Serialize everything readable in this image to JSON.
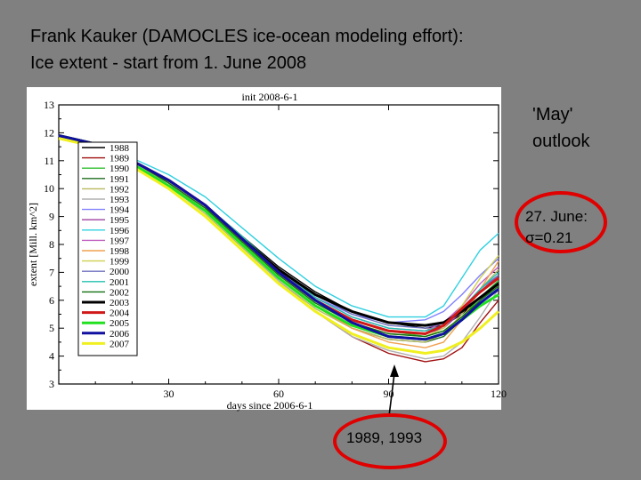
{
  "slide": {
    "title_line1": "Frank Kauker (DAMOCLES ice-ocean modeling effort):",
    "title_line2": "Ice extent - start from 1. June 2008"
  },
  "annotations": {
    "outlook_line1": "'May'",
    "outlook_line2": "outlook",
    "june_line1": "27. June:",
    "june_line2": "σ=0.21",
    "years": "1989, 1993",
    "highlight_color": "#e00000"
  },
  "chart_data": {
    "type": "line",
    "title": "init 2008-6-1",
    "xlabel": "days since 2006-6-1",
    "ylabel": "extent [Mill. km^2]",
    "xlim": [
      0,
      120
    ],
    "ylim": [
      3,
      13
    ],
    "xticks": [
      30,
      60,
      90,
      120
    ],
    "yticks": [
      3,
      4,
      5,
      6,
      7,
      8,
      9,
      10,
      11,
      12,
      13
    ],
    "legend_position": "left",
    "series": [
      {
        "name": "1988",
        "color": "#000000",
        "x": [
          0,
          10,
          20,
          30,
          40,
          50,
          60,
          70,
          80,
          90,
          100,
          105,
          110,
          115,
          120
        ],
        "y": [
          11.9,
          11.6,
          11.0,
          10.3,
          9.4,
          8.3,
          7.2,
          6.3,
          5.6,
          5.2,
          5.0,
          5.1,
          5.5,
          6.1,
          6.7
        ]
      },
      {
        "name": "1989",
        "color": "#a01010",
        "x": [
          0,
          10,
          20,
          30,
          40,
          50,
          60,
          70,
          80,
          90,
          100,
          105,
          110,
          115,
          120
        ],
        "y": [
          11.9,
          11.6,
          10.9,
          10.1,
          9.2,
          8.0,
          6.7,
          5.6,
          4.7,
          4.1,
          3.8,
          3.9,
          4.3,
          5.2,
          6.0
        ]
      },
      {
        "name": "1990",
        "color": "#30c030",
        "x": [
          0,
          10,
          20,
          30,
          40,
          50,
          60,
          70,
          80,
          90,
          100,
          105,
          110,
          115,
          120
        ],
        "y": [
          11.9,
          11.6,
          10.9,
          10.2,
          9.3,
          8.1,
          7.0,
          6.0,
          5.3,
          4.9,
          4.7,
          4.9,
          5.4,
          6.1,
          6.7
        ]
      },
      {
        "name": "1991",
        "color": "#1e6e1e",
        "x": [
          0,
          10,
          20,
          30,
          40,
          50,
          60,
          70,
          80,
          90,
          100,
          105,
          110,
          115,
          120
        ],
        "y": [
          11.9,
          11.6,
          11.0,
          10.2,
          9.2,
          8.0,
          6.8,
          5.8,
          5.0,
          4.6,
          4.5,
          4.7,
          5.3,
          6.0,
          6.6
        ]
      },
      {
        "name": "1992",
        "color": "#b8b860",
        "x": [
          0,
          10,
          20,
          30,
          40,
          50,
          60,
          70,
          80,
          90,
          100,
          105,
          110,
          115,
          120
        ],
        "y": [
          11.9,
          11.6,
          10.9,
          10.1,
          9.1,
          7.9,
          6.7,
          5.7,
          5.0,
          4.6,
          4.5,
          4.8,
          5.5,
          6.4,
          7.1
        ]
      },
      {
        "name": "1993",
        "color": "#b0b0b0",
        "x": [
          0,
          10,
          20,
          30,
          40,
          50,
          60,
          70,
          80,
          90,
          100,
          105,
          110,
          115,
          120
        ],
        "y": [
          11.9,
          11.6,
          10.9,
          10.2,
          9.2,
          8.0,
          6.7,
          5.6,
          4.7,
          4.2,
          3.9,
          4.0,
          4.5,
          5.4,
          6.4
        ]
      },
      {
        "name": "1994",
        "color": "#8080ff",
        "x": [
          0,
          10,
          20,
          30,
          40,
          50,
          60,
          70,
          80,
          90,
          100,
          105,
          110,
          115,
          120
        ],
        "y": [
          11.9,
          11.6,
          11.0,
          10.3,
          9.4,
          8.2,
          7.0,
          6.1,
          5.5,
          5.2,
          5.3,
          5.6,
          6.2,
          6.9,
          7.5
        ]
      },
      {
        "name": "1995",
        "color": "#a040a0",
        "x": [
          0,
          10,
          20,
          30,
          40,
          50,
          60,
          70,
          80,
          90,
          100,
          105,
          110,
          115,
          120
        ],
        "y": [
          11.9,
          11.6,
          11.0,
          10.2,
          9.3,
          8.1,
          6.9,
          6.0,
          5.3,
          4.9,
          4.8,
          5.0,
          5.6,
          6.3,
          6.9
        ]
      },
      {
        "name": "1996",
        "color": "#30d0e0",
        "x": [
          0,
          10,
          20,
          30,
          40,
          50,
          60,
          70,
          80,
          90,
          100,
          105,
          110,
          115,
          120
        ],
        "y": [
          11.9,
          11.6,
          11.1,
          10.5,
          9.7,
          8.6,
          7.5,
          6.5,
          5.8,
          5.4,
          5.4,
          5.8,
          6.8,
          7.8,
          8.4
        ]
      },
      {
        "name": "1997",
        "color": "#c060c0",
        "x": [
          0,
          10,
          20,
          30,
          40,
          50,
          60,
          70,
          80,
          90,
          100,
          105,
          110,
          115,
          120
        ],
        "y": [
          11.9,
          11.6,
          11.0,
          10.3,
          9.4,
          8.2,
          7.0,
          6.1,
          5.4,
          5.0,
          4.9,
          5.2,
          5.8,
          6.6,
          7.2
        ]
      },
      {
        "name": "1998",
        "color": "#f0a050",
        "x": [
          0,
          10,
          20,
          30,
          40,
          50,
          60,
          70,
          80,
          90,
          100,
          105,
          110,
          115,
          120
        ],
        "y": [
          11.9,
          11.6,
          10.9,
          10.1,
          9.2,
          8.0,
          6.8,
          5.8,
          5.0,
          4.5,
          4.3,
          4.5,
          5.3,
          6.4,
          7.4
        ]
      },
      {
        "name": "1999",
        "color": "#d0d050",
        "x": [
          0,
          10,
          20,
          30,
          40,
          50,
          60,
          70,
          80,
          90,
          100,
          105,
          110,
          115,
          120
        ],
        "y": [
          11.9,
          11.6,
          11.0,
          10.2,
          9.3,
          8.1,
          6.9,
          5.9,
          5.2,
          4.8,
          4.7,
          5.0,
          5.8,
          6.8,
          7.6
        ]
      },
      {
        "name": "2000",
        "color": "#7070c0",
        "x": [
          0,
          10,
          20,
          30,
          40,
          50,
          60,
          70,
          80,
          90,
          100,
          105,
          110,
          115,
          120
        ],
        "y": [
          11.9,
          11.6,
          11.0,
          10.3,
          9.4,
          8.2,
          7.1,
          6.2,
          5.5,
          5.1,
          5.0,
          5.2,
          5.7,
          6.4,
          6.9
        ]
      },
      {
        "name": "2001",
        "color": "#20c0b0",
        "x": [
          0,
          10,
          20,
          30,
          40,
          50,
          60,
          70,
          80,
          90,
          100,
          105,
          110,
          115,
          120
        ],
        "y": [
          11.9,
          11.6,
          11.0,
          10.3,
          9.4,
          8.3,
          7.1,
          6.1,
          5.4,
          5.0,
          4.9,
          5.1,
          5.7,
          6.4,
          7.0
        ]
      },
      {
        "name": "2002",
        "color": "#107010",
        "x": [
          0,
          10,
          20,
          30,
          40,
          50,
          60,
          70,
          80,
          90,
          100,
          105,
          110,
          115,
          120
        ],
        "y": [
          11.9,
          11.6,
          11.0,
          10.2,
          9.3,
          8.1,
          6.9,
          5.9,
          5.2,
          4.8,
          4.7,
          4.9,
          5.4,
          6.0,
          6.5
        ]
      },
      {
        "name": "2003",
        "color": "#000000",
        "x": [
          0,
          10,
          20,
          30,
          40,
          50,
          60,
          70,
          80,
          90,
          100,
          105,
          110,
          115,
          120
        ],
        "y": [
          11.9,
          11.6,
          11.0,
          10.3,
          9.4,
          8.2,
          7.1,
          6.2,
          5.6,
          5.2,
          5.1,
          5.2,
          5.6,
          6.1,
          6.6
        ]
      },
      {
        "name": "2004",
        "color": "#d01818",
        "x": [
          0,
          10,
          20,
          30,
          40,
          50,
          60,
          70,
          80,
          90,
          100,
          105,
          110,
          115,
          120
        ],
        "y": [
          11.9,
          11.6,
          11.0,
          10.3,
          9.4,
          8.2,
          7.0,
          6.0,
          5.3,
          4.9,
          4.8,
          5.1,
          5.7,
          6.3,
          6.8
        ]
      },
      {
        "name": "2005",
        "color": "#20e020",
        "x": [
          0,
          10,
          20,
          30,
          40,
          50,
          60,
          70,
          80,
          90,
          100,
          105,
          110,
          115,
          120
        ],
        "y": [
          11.9,
          11.6,
          10.9,
          10.1,
          9.2,
          8.0,
          6.8,
          5.8,
          5.1,
          4.7,
          4.6,
          4.8,
          5.3,
          5.8,
          6.2
        ]
      },
      {
        "name": "2006",
        "color": "#1010a0",
        "x": [
          0,
          10,
          20,
          30,
          40,
          50,
          60,
          70,
          80,
          90,
          100,
          105,
          110,
          115,
          120
        ],
        "y": [
          11.9,
          11.6,
          11.0,
          10.3,
          9.4,
          8.2,
          7.0,
          6.0,
          5.2,
          4.7,
          4.6,
          4.8,
          5.3,
          5.9,
          6.4
        ]
      },
      {
        "name": "2007",
        "color": "#f0f020",
        "x": [
          0,
          10,
          20,
          30,
          40,
          50,
          60,
          70,
          80,
          90,
          100,
          105,
          110,
          115,
          120
        ],
        "y": [
          11.8,
          11.5,
          10.8,
          10.0,
          9.0,
          7.8,
          6.6,
          5.6,
          4.8,
          4.3,
          4.1,
          4.2,
          4.5,
          5.0,
          5.6
        ]
      }
    ]
  }
}
